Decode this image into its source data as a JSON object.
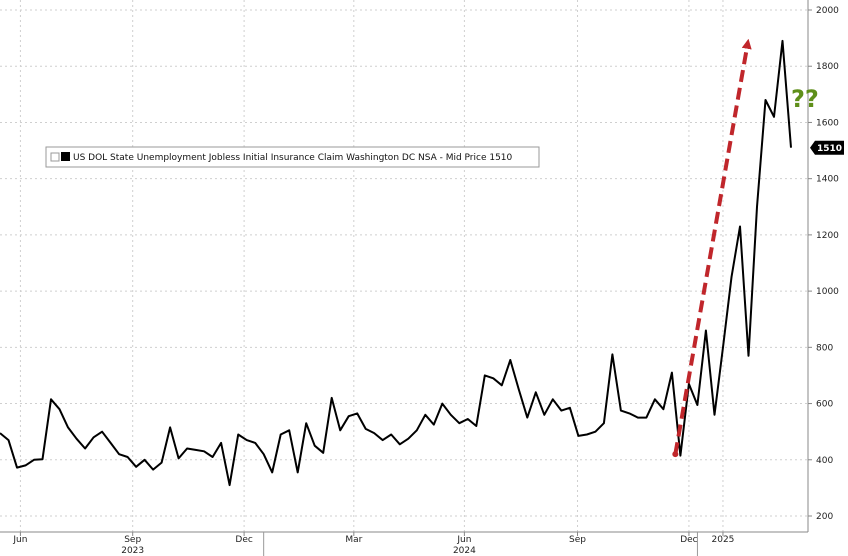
{
  "chart_data": {
    "type": "line",
    "legend": {
      "placement": "top-left",
      "label": "US DOL State Unemployment Jobless Initial Insurance Claim Washington DC NSA - Mid Price 1510"
    },
    "last_value_label": "1510",
    "annotation_text": "??",
    "colors": {
      "line": "#000000",
      "arrow": "#c0262b",
      "annotation": "#5f8f1a",
      "last_value_bg": "#000000"
    },
    "ylim": [
      200,
      2000
    ],
    "y_ticks": [
      200,
      400,
      600,
      800,
      1000,
      1200,
      1400,
      1600,
      1800,
      2000
    ],
    "grid": true,
    "x_month_ticks": [
      {
        "label": "Jun",
        "x": 2.4
      },
      {
        "label": "Sep",
        "x": 15.6
      },
      {
        "label": "Dec",
        "x": 28.7
      },
      {
        "label": "Mar",
        "x": 41.6
      },
      {
        "label": "Jun",
        "x": 54.6
      },
      {
        "label": "Sep",
        "x": 67.9
      },
      {
        "label": "Dec",
        "x": 81.0
      },
      {
        "label": "2025",
        "x": 85.0
      }
    ],
    "x_year_ticks": [
      {
        "label": "2023",
        "x": 15.6
      },
      {
        "label": "2024",
        "x": 54.6
      },
      {
        "label": "2025",
        "x": 85.0
      }
    ],
    "year_separators": [
      31.0,
      82.0
    ],
    "xlim": [
      0,
      94
    ],
    "series": [
      {
        "values": [
          495,
          470,
          372,
          380,
          400,
          402,
          615,
          580,
          515,
          475,
          440,
          480,
          500,
          460,
          420,
          410,
          375,
          400,
          365,
          390,
          515,
          405,
          440,
          435,
          430,
          410,
          460,
          310,
          490,
          470,
          460,
          420,
          355,
          490,
          505,
          355,
          530,
          450,
          425,
          620,
          505,
          555,
          565,
          510,
          495,
          470,
          490,
          455,
          475,
          505,
          560,
          525,
          600,
          560,
          530,
          545,
          520,
          700,
          690,
          665,
          755,
          650,
          550,
          640,
          560,
          615,
          575,
          585,
          485,
          490,
          500,
          530,
          775,
          575,
          565,
          550,
          550,
          615,
          580,
          710,
          415,
          670,
          595,
          860,
          560,
          800,
          1050,
          1230,
          770,
          1300,
          1680,
          1620,
          1890,
          1510
        ]
      }
    ],
    "arrow_annotation": {
      "from": [
        79.4,
        420
      ],
      "to": [
        87.9,
        1880
      ]
    }
  }
}
